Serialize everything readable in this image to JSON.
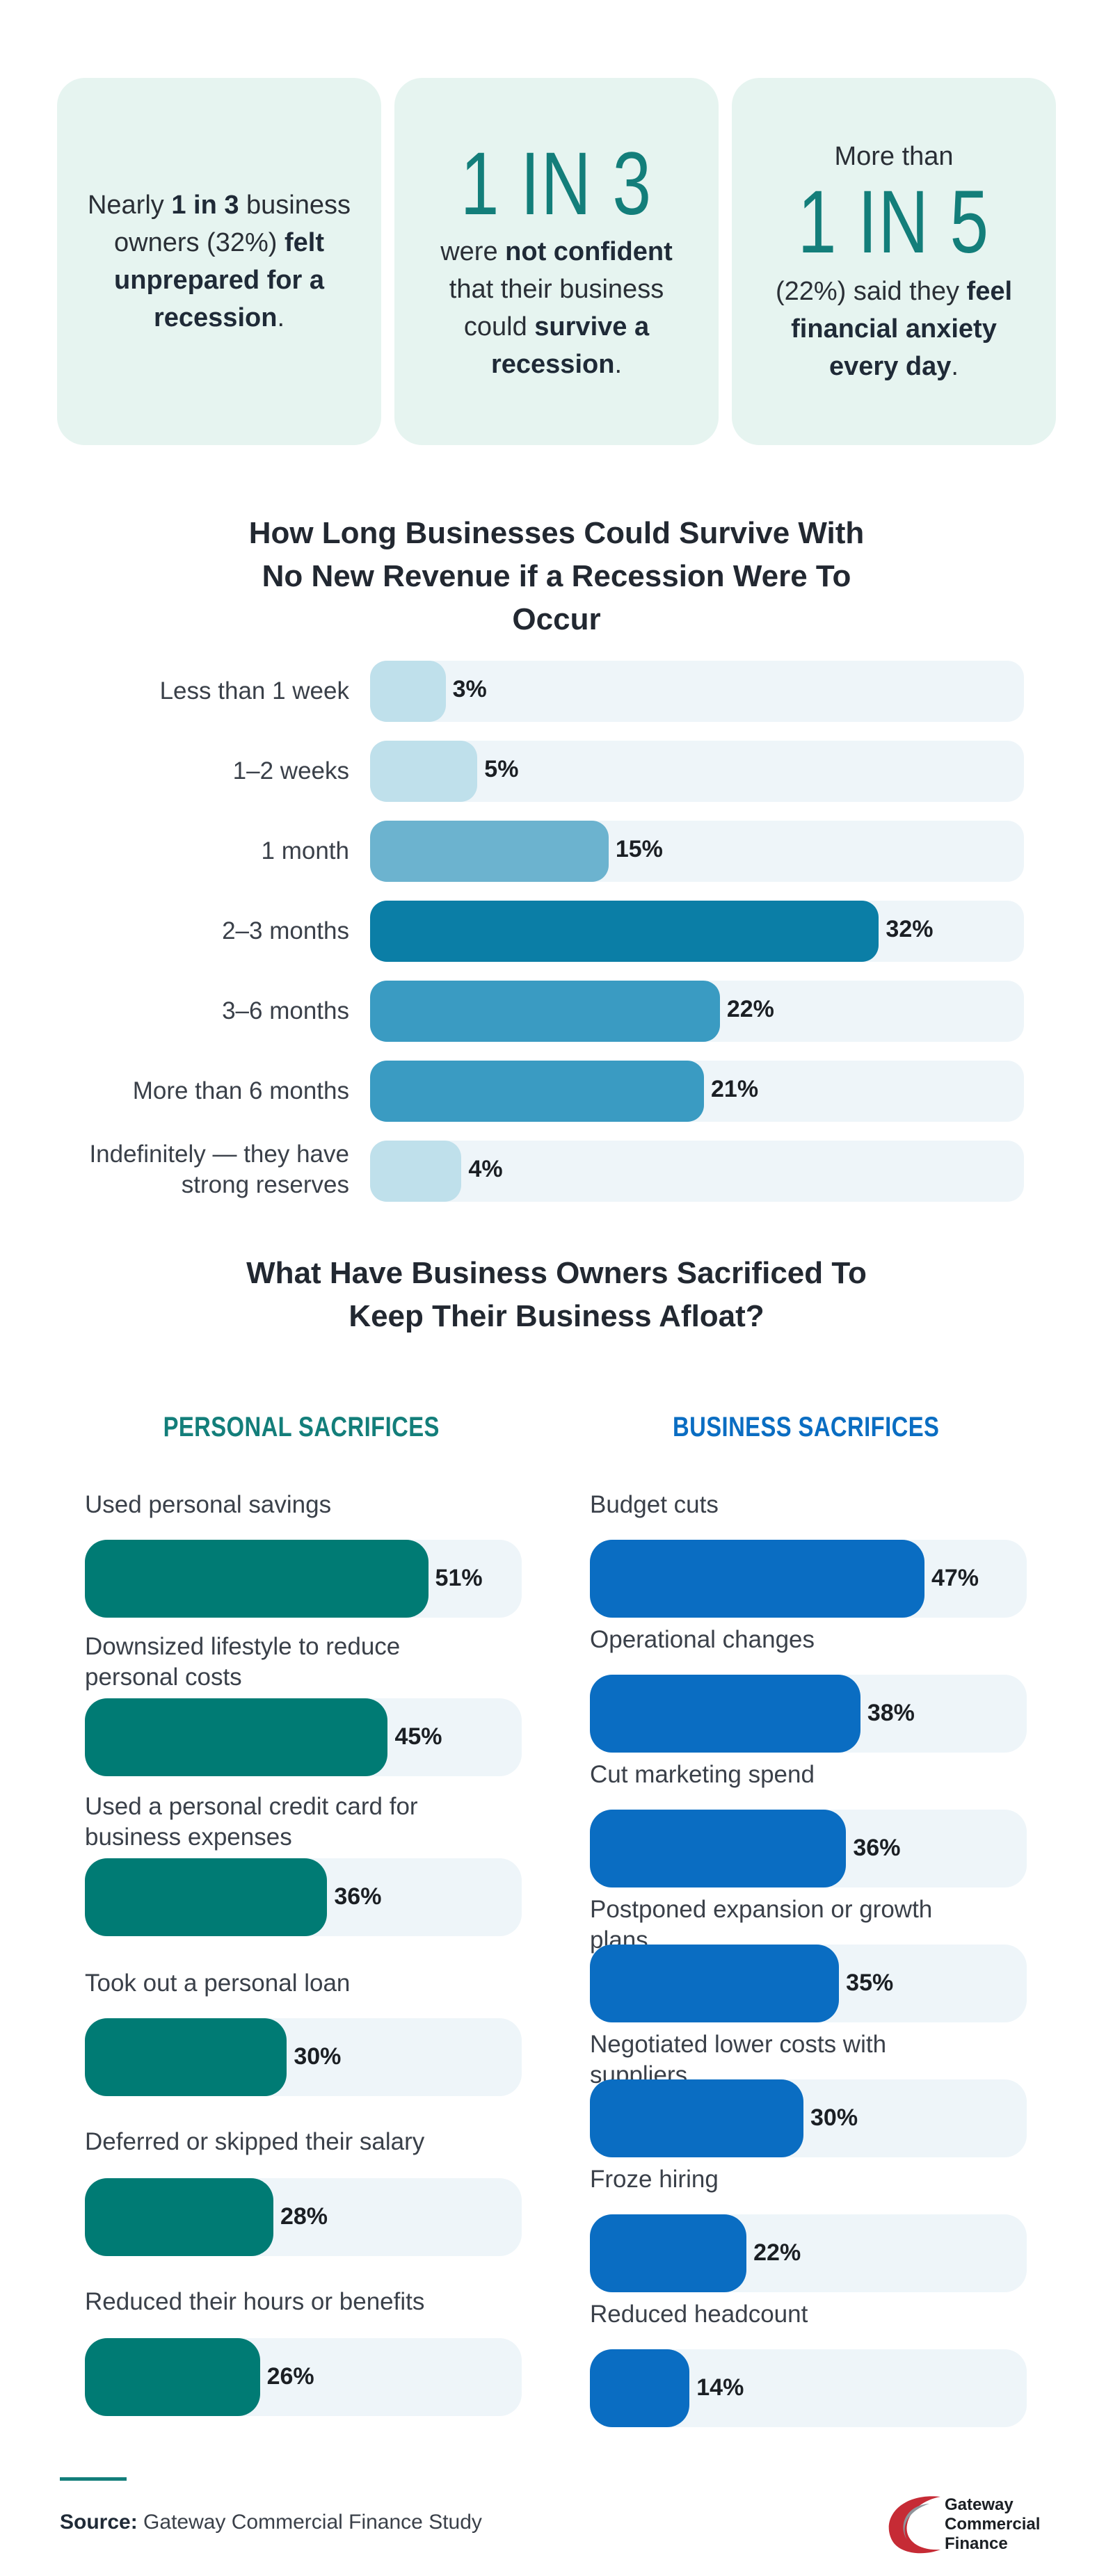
{
  "stats": [
    {
      "parts": [
        {
          "t": "Nearly ",
          "b": false
        },
        {
          "t": "1 in 3",
          "b": true
        },
        {
          "t": " business owners (32%) ",
          "b": false
        },
        {
          "t": "felt unprepared for a recession",
          "b": true
        },
        {
          "t": ".",
          "b": false
        }
      ]
    },
    {
      "big": "1 IN 3",
      "parts": [
        {
          "t": "were ",
          "b": false
        },
        {
          "t": "not confident",
          "b": true
        },
        {
          "t": " that their business could ",
          "b": false
        },
        {
          "t": "survive a recession",
          "b": true
        },
        {
          "t": ".",
          "b": false
        }
      ]
    },
    {
      "pre": "More than",
      "big": "1 IN 5",
      "parts": [
        {
          "t": "(22%) said they ",
          "b": false
        },
        {
          "t": "feel financial anxiety every day",
          "b": true
        },
        {
          "t": ".",
          "b": false
        }
      ]
    }
  ],
  "chart_data": [
    {
      "type": "bar",
      "orientation": "horizontal",
      "title": "How Long Businesses Could Survive With No New Revenue if a Recession Were To Occur",
      "categories": [
        "Less than 1 week",
        "1–2 weeks",
        "1 month",
        "2–3 months",
        "3–6 months",
        "More than 6 months",
        "Indefinitely — they have strong reserves"
      ],
      "values": [
        3,
        5,
        15,
        32,
        22,
        21,
        4
      ],
      "value_labels": [
        "3%",
        "5%",
        "15%",
        "32%",
        "22%",
        "21%",
        "4%"
      ],
      "bar_colors": [
        "#bfe0eb",
        "#bfe0eb",
        "#6cb3cf",
        "#0b7ea6",
        "#3a9bc2",
        "#3a9bc2",
        "#bfe0eb"
      ],
      "track_color": "#eef5f9",
      "xlim": [
        0,
        35
      ]
    },
    {
      "type": "bar",
      "orientation": "horizontal",
      "title": "What Have Business Owners Sacrificed To Keep Their Business Afloat?",
      "subtitle": "PERSONAL SACRIFICES",
      "categories": [
        "Used personal savings",
        "Downsized lifestyle to reduce personal costs",
        "Used a personal credit card for business expenses",
        "Took out a personal loan",
        "Deferred or skipped their salary",
        "Reduced their hours or benefits"
      ],
      "values": [
        51,
        45,
        36,
        30,
        28,
        26
      ],
      "value_labels": [
        "51%",
        "45%",
        "36%",
        "30%",
        "28%",
        "26%"
      ],
      "bar_color": "#007b74",
      "heading_color": "#137e7a",
      "xlim": [
        0,
        62
      ]
    },
    {
      "type": "bar",
      "orientation": "horizontal",
      "title": "What Have Business Owners Sacrificed To Keep Their Business Afloat?",
      "subtitle": "BUSINESS SACRIFICES",
      "categories": [
        "Budget cuts",
        "Operational changes",
        "Cut marketing spend",
        "Postponed expansion or growth plans",
        "Negotiated lower costs with suppliers",
        "Froze hiring",
        "Reduced headcount"
      ],
      "values": [
        47,
        38,
        36,
        35,
        30,
        22,
        14
      ],
      "value_labels": [
        "47%",
        "38%",
        "36%",
        "35%",
        "30%",
        "22%",
        "14%"
      ],
      "bar_color": "#0a6dc2",
      "heading_color": "#0a6dc2",
      "xlim": [
        0,
        60
      ]
    }
  ],
  "source": {
    "label": "Source:",
    "text": "Gateway Commercial Finance Study"
  },
  "logo": {
    "line1": "Gateway",
    "line2": "Commercial",
    "line3": "Finance",
    "icon": "gateway-swoosh-logo-icon"
  }
}
